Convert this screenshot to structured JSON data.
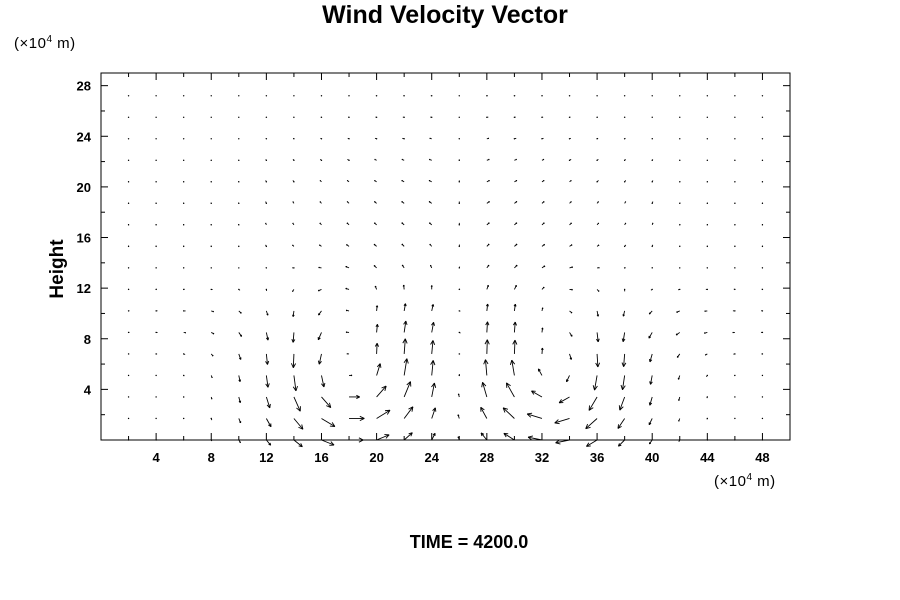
{
  "chart_data": {
    "type": "vector-field",
    "title": "Wind Velocity Vector",
    "ylabel": "Height",
    "y_unit": {
      "prefix": "(×10",
      "exp": "4",
      "suffix": " m)"
    },
    "x_unit": {
      "prefix": "(×10",
      "exp": "4",
      "suffix": " m)"
    },
    "xlim": [
      0,
      50
    ],
    "ylim": [
      0,
      29
    ],
    "x_ticks": [
      4,
      8,
      12,
      16,
      20,
      24,
      28,
      32,
      36,
      40,
      44,
      48
    ],
    "y_ticks": [
      4,
      8,
      12,
      16,
      20,
      24,
      28
    ],
    "grid": false,
    "vector_grid": {
      "x_start": 2,
      "x_step": 2,
      "x_count": 24,
      "y_start": 0,
      "y_step": 1.7,
      "y_count": 17
    },
    "features": [
      {
        "description_of_flow": "counter-rotating circulation cells",
        "centers": [
          [
            18,
            5
          ],
          [
            33,
            5
          ]
        ]
      },
      {
        "description_of_flow": "strong convergent inflow toward center column",
        "x": 26
      }
    ],
    "time_label": "TIME = 4200.0"
  }
}
